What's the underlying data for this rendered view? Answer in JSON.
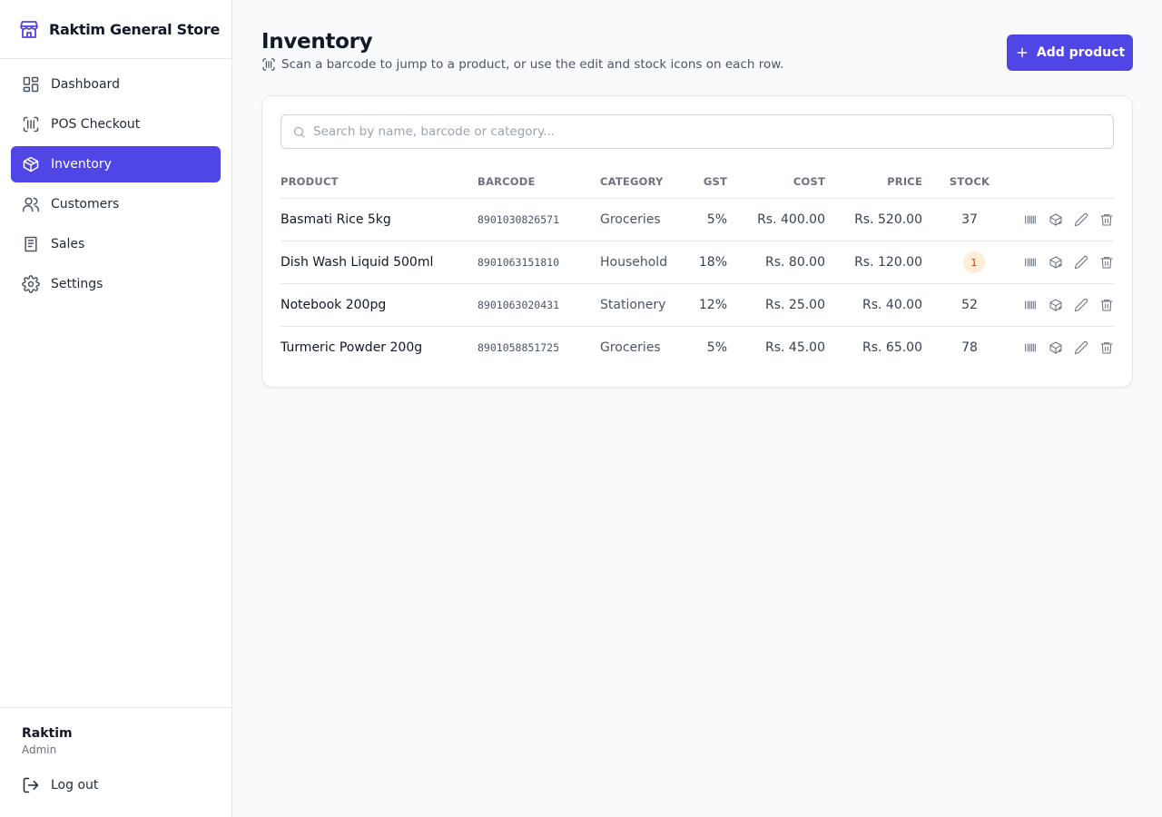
{
  "sidebar": {
    "store_name": "Raktim General Store",
    "nav": [
      "Dashboard",
      "POS Checkout",
      "Inventory",
      "Customers",
      "Sales",
      "Settings"
    ],
    "active_nav": 2,
    "user": {
      "name": "Raktim",
      "role": "Admin"
    },
    "logout": "Log out"
  },
  "header": {
    "title": "Inventory",
    "subtitle": "Scan a barcode to jump to a product, or use the edit and stock icons on each row.",
    "button": "Add product"
  },
  "search": {
    "placeholder": "Search by name, barcode or category..."
  },
  "table": {
    "columns": [
      "PRODUCT",
      "BARCODE",
      "CATEGORY",
      "GST",
      "COST",
      "PRICE",
      "STOCK"
    ],
    "rows": [
      {
        "product": "Basmati Rice 5kg",
        "barcode": "8901030826571",
        "category": "Groceries",
        "gst": "5%",
        "cost": "Rs. 400.00",
        "price": "Rs. 520.00",
        "stock": 37,
        "low_stock": false
      },
      {
        "product": "Dish Wash Liquid 500ml",
        "barcode": "8901063151810",
        "category": "Household",
        "gst": "18%",
        "cost": "Rs. 80.00",
        "price": "Rs. 120.00",
        "stock": 1,
        "low_stock": true
      },
      {
        "product": "Notebook 200pg",
        "barcode": "8901063020431",
        "category": "Stationery",
        "gst": "12%",
        "cost": "Rs. 25.00",
        "price": "Rs. 40.00",
        "stock": 52,
        "low_stock": false
      },
      {
        "product": "Turmeric Powder 200g",
        "barcode": "8901058851725",
        "category": "Groceries",
        "gst": "5%",
        "cost": "Rs. 45.00",
        "price": "Rs. 65.00",
        "stock": 78,
        "low_stock": false
      }
    ]
  }
}
